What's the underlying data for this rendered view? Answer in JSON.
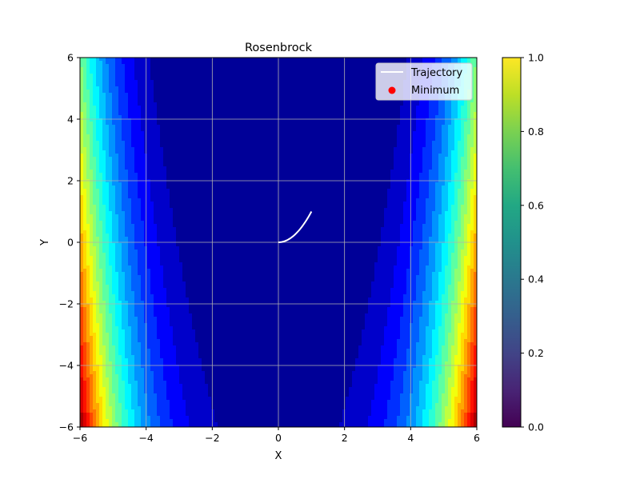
{
  "chart_data": {
    "type": "contour",
    "title": "Rosenbrock",
    "xlabel": "X",
    "ylabel": "Y",
    "xlim": [
      -6,
      6
    ],
    "ylim": [
      -6,
      6
    ],
    "xticks": [
      -6,
      -4,
      -2,
      0,
      2,
      4,
      6
    ],
    "yticks": [
      -6,
      -4,
      -2,
      0,
      2,
      4,
      6
    ],
    "xtick_labels": [
      "−6",
      "−4",
      "−2",
      "0",
      "2",
      "4",
      "6"
    ],
    "ytick_labels": [
      "−6",
      "−4",
      "−2",
      "0",
      "2",
      "4",
      "6"
    ],
    "grid": true,
    "function": "rosenbrock",
    "colormap": "jet",
    "levels": 20,
    "series": [
      {
        "name": "Trajectory",
        "kind": "line",
        "color": "#ffffff",
        "x": [
          0.0,
          0.05,
          0.1,
          0.15,
          0.2,
          0.25,
          0.3,
          0.35,
          0.4,
          0.45,
          0.5,
          0.55,
          0.6,
          0.65,
          0.7,
          0.75,
          0.8,
          0.85,
          0.9,
          0.95,
          1.0
        ],
        "y": [
          0.0,
          0.0025,
          0.01,
          0.0225,
          0.04,
          0.0625,
          0.09,
          0.1225,
          0.16,
          0.2025,
          0.25,
          0.3025,
          0.36,
          0.4225,
          0.49,
          0.5625,
          0.64,
          0.7225,
          0.81,
          0.9025,
          1.0
        ]
      },
      {
        "name": "Minimum",
        "kind": "scatter",
        "color": "#ff0000",
        "x": [],
        "y": []
      }
    ],
    "legend": {
      "position": "top-right",
      "entries": [
        "Trajectory",
        "Minimum"
      ]
    },
    "colorbar": {
      "colormap": "viridis",
      "range": [
        0.0,
        1.0
      ],
      "ticks": [
        0.0,
        0.2,
        0.4,
        0.6,
        0.8,
        1.0
      ],
      "tick_labels": [
        "0.0",
        "0.2",
        "0.4",
        "0.6",
        "0.8",
        "1.0"
      ]
    }
  }
}
